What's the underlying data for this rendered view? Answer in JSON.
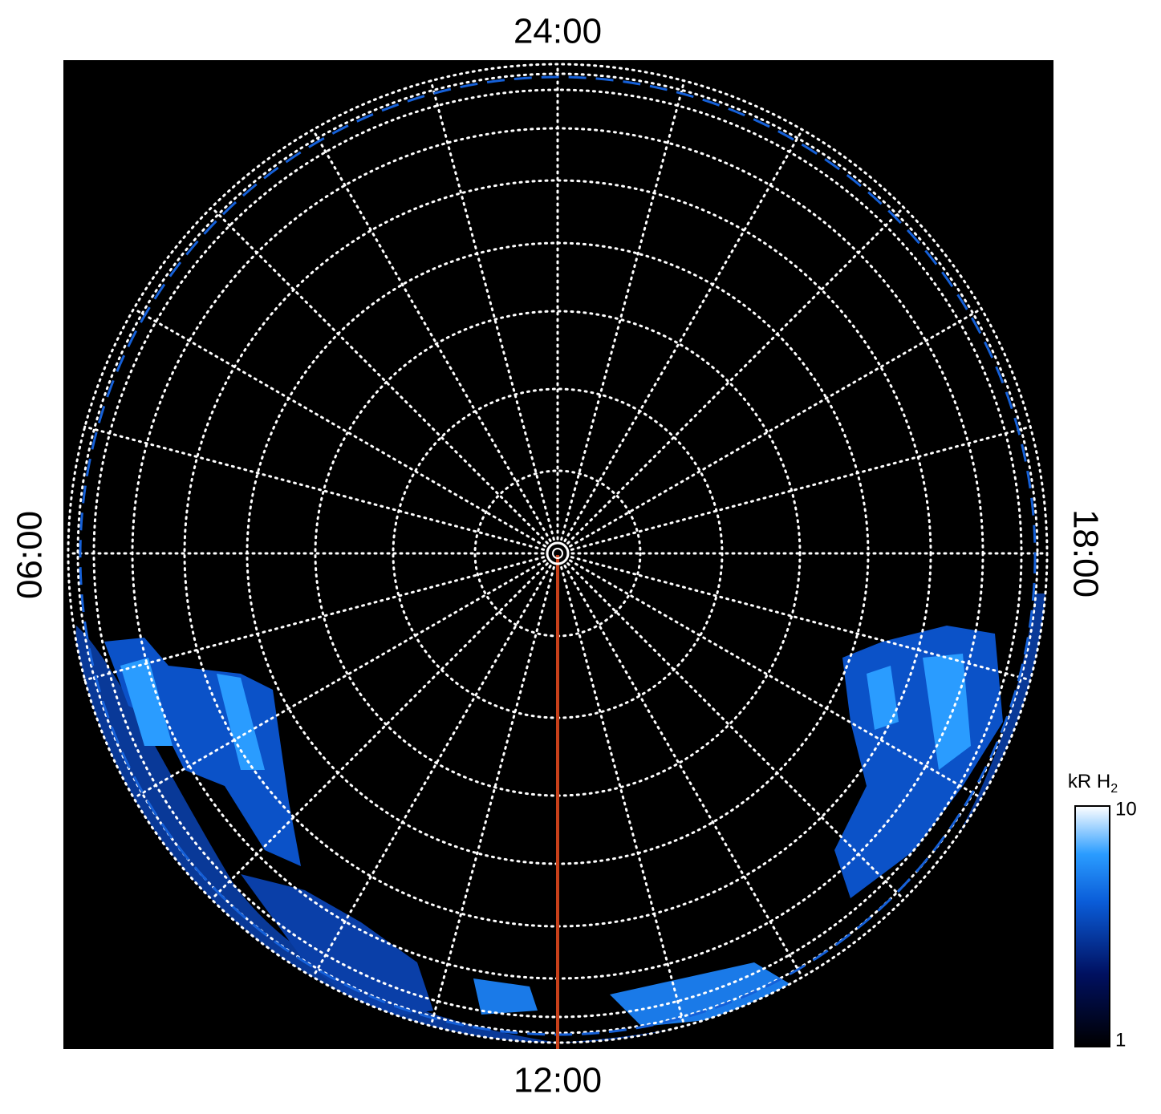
{
  "local_time_labels": {
    "top": "24:00",
    "left": "06:00",
    "bottom": "12:00",
    "right": "18:00"
  },
  "colorbar": {
    "label": "kR H",
    "label_subscript": "2",
    "ticks": [
      1,
      10
    ]
  }
}
